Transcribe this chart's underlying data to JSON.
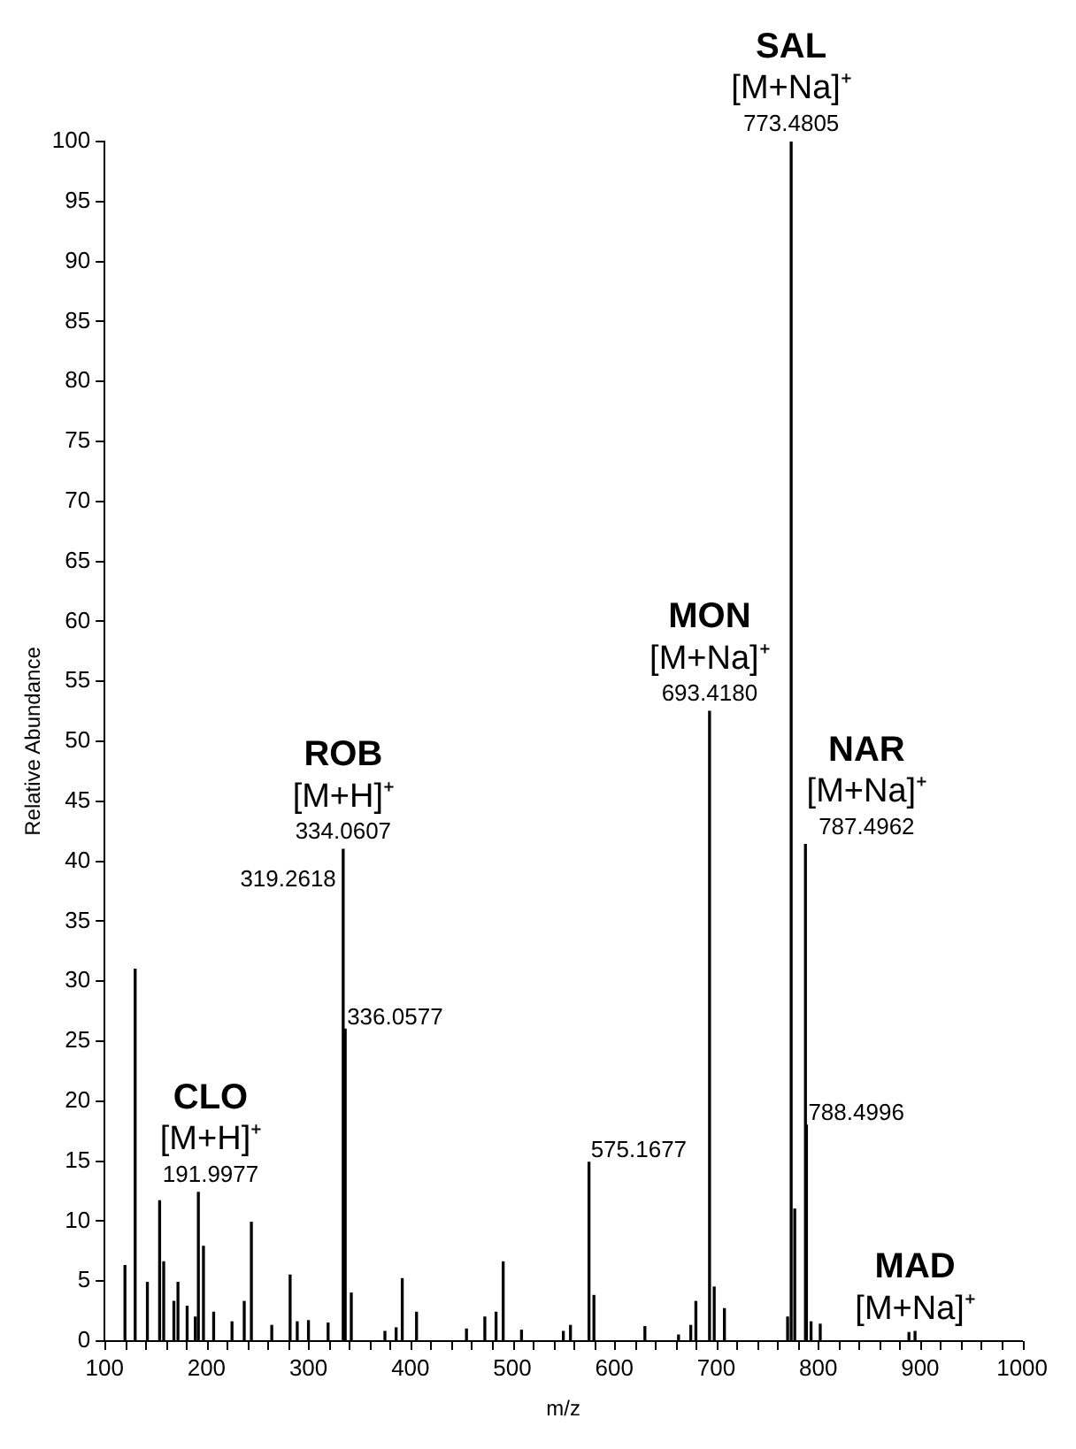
{
  "chart_data": {
    "type": "bar",
    "xlabel": "m/z",
    "ylabel": "Relative Abundance",
    "color": "#000000",
    "grid": false,
    "legend": false,
    "x": [
      120,
      130,
      142,
      154,
      158,
      168,
      172,
      181,
      189,
      191.9977,
      197,
      207,
      225,
      237,
      244,
      264,
      282,
      289,
      300,
      319.2618,
      334.0607,
      336.0577,
      342,
      375,
      386,
      392,
      406,
      455,
      473,
      484,
      491,
      509,
      550,
      557,
      575.1677,
      580,
      630,
      663,
      675,
      680,
      693.418,
      698,
      708,
      770,
      773.4805,
      777,
      787.4962,
      788.4996,
      793,
      802,
      889,
      895
    ],
    "values": [
      6.3,
      31,
      4.9,
      11.7,
      6.6,
      3.3,
      4.9,
      2.9,
      2,
      12.4,
      7.9,
      2.4,
      1.6,
      3.3,
      9.9,
      1.3,
      5.5,
      1.6,
      1.7,
      1.5,
      41,
      26,
      4,
      0.8,
      1.1,
      5.2,
      2.4,
      1,
      2,
      2.4,
      6.6,
      0.9,
      0.8,
      1.3,
      14.9,
      3.8,
      1.2,
      0.5,
      1.3,
      3.3,
      52.5,
      4.5,
      2.7,
      2,
      100,
      11,
      41.4,
      18,
      1.6,
      1.4,
      0.7,
      0.8
    ],
    "xlim": [
      100,
      1000
    ],
    "xticks": [
      100,
      {
        "value": 120,
        "label": null
      },
      {
        "value": 140,
        "label": null
      },
      {
        "value": 160,
        "label": null
      },
      {
        "value": 180,
        "label": null
      },
      200,
      {
        "value": 220,
        "label": null
      },
      {
        "value": 240,
        "label": null
      },
      {
        "value": 260,
        "label": null
      },
      {
        "value": 280,
        "label": null
      },
      300,
      {
        "value": 320,
        "label": null
      },
      {
        "value": 340,
        "label": null
      },
      {
        "value": 360,
        "label": null
      },
      {
        "value": 380,
        "label": null
      },
      400,
      {
        "value": 420,
        "label": null
      },
      {
        "value": 440,
        "label": null
      },
      {
        "value": 460,
        "label": null
      },
      {
        "value": 480,
        "label": null
      },
      500,
      {
        "value": 520,
        "label": null
      },
      {
        "value": 540,
        "label": null
      },
      {
        "value": 560,
        "label": null
      },
      {
        "value": 580,
        "label": null
      },
      600,
      {
        "value": 620,
        "label": null
      },
      {
        "value": 640,
        "label": null
      },
      {
        "value": 660,
        "label": null
      },
      {
        "value": 680,
        "label": null
      },
      700,
      {
        "value": 720,
        "label": null
      },
      {
        "value": 740,
        "label": null
      },
      {
        "value": 760,
        "label": null
      },
      {
        "value": 780,
        "label": null
      },
      800,
      {
        "value": 820,
        "label": null
      },
      {
        "value": 840,
        "label": null
      },
      {
        "value": 860,
        "label": null
      },
      {
        "value": 880,
        "label": null
      },
      900,
      {
        "value": 920,
        "label": null
      },
      {
        "value": 940,
        "label": null
      },
      {
        "value": 960,
        "label": null
      },
      {
        "value": 980,
        "label": null
      },
      1000
    ],
    "ylim": [
      0,
      100
    ],
    "yticks": [
      0,
      5,
      10,
      15,
      20,
      25,
      30,
      35,
      40,
      45,
      50,
      55,
      60,
      65,
      70,
      75,
      80,
      85,
      90,
      95,
      100
    ],
    "annotations": [
      {
        "text": "191.9977",
        "x": 191.9977,
        "y": 12.4
      },
      {
        "text": "[M+H]⁺",
        "x": 191.9977,
        "y": 12.4
      },
      {
        "text": "CLO",
        "x": 191.9977,
        "y": 12.4
      },
      "319.2618",
      {
        "text": "334.0607",
        "x": 334.0607,
        "y": 41
      },
      {
        "text": "[M+H]⁺",
        "x": 334.0607,
        "y": 41
      },
      {
        "text": "ROB",
        "x": 334.0607,
        "y": 41
      },
      {
        "text": "336.0577",
        "x": 336.0577,
        "y": 26
      },
      {
        "text": "575.1677",
        "x": 575.1677,
        "y": 14.9
      },
      {
        "text": "693.4180",
        "x": 693.418,
        "y": 52.5
      },
      {
        "text": "[M+Na]⁺",
        "x": 693.418,
        "y": 52.5
      },
      {
        "text": "MON",
        "x": 693.418,
        "y": 52.5
      },
      {
        "text": "773.4805",
        "x": 773.4805,
        "y": 100
      },
      {
        "text": "[M+Na]⁺",
        "x": 773.4805,
        "y": 100
      },
      {
        "text": "SAL",
        "x": 773.4805,
        "y": 100
      },
      {
        "text": "787.4962",
        "x": 787.4962,
        "y": 41.4
      },
      {
        "text": "[M+Na]⁺",
        "x": 787.4962,
        "y": 41.4
      },
      {
        "text": "NAR",
        "x": 787.4962,
        "y": 41.4
      },
      {
        "text": "788.4996",
        "x": 788.4996,
        "y": 18
      },
      {
        "text": "[M+Na]⁺",
        "x": 895,
        "y": 0.8
      },
      {
        "text": "MAD",
        "x": 895,
        "y": 0.8
      }
    ]
  }
}
